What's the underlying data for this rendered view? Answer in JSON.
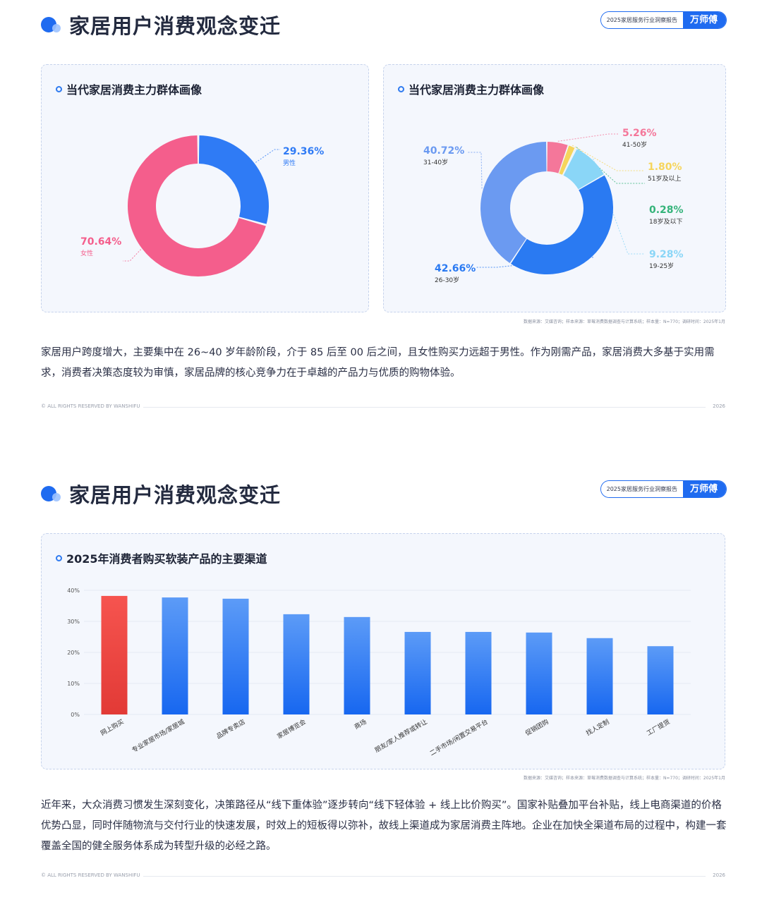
{
  "page1": {
    "header": {
      "title": "家居用户消费观念变迁"
    },
    "badge": {
      "text": "2025家居服务行业洞察报告",
      "brand": "万师傅"
    },
    "card_left": {
      "title": "当代家居消费主力群体画像"
    },
    "card_right": {
      "title": "当代家居消费主力群体画像"
    },
    "source": "数据来源：艾媒咨询；样本来源：草莓消费数据调查与计算系统；样本量：N=770；调研时间：2025年1月",
    "paragraph": "家居用户跨度增大，主要集中在 26~40 岁年龄阶段，介于 85 后至 00 后之间，且女性购买力远超于男性。作为刚需产品，家居消费大多基于实用需求，消费者决策态度较为审慎，家居品牌的核心竞争力在于卓越的产品力与优质的购物体验。",
    "footer": {
      "left": "© ALL RIGHTS RESERVED BY WANSHIFU",
      "right": "2026"
    }
  },
  "page2": {
    "header": {
      "title": "家居用户消费观念变迁"
    },
    "badge": {
      "text": "2025家居服务行业洞察报告",
      "brand": "万师傅"
    },
    "card": {
      "title": "2025年消费者购买软装产品的主要渠道"
    },
    "source": "数据来源：艾媒咨询；样本来源：草莓消费数据调查与计算系统；样本量：N=770；调研时间：2025年1月",
    "paragraph": "近年来，大众消费习惯发生深刻变化，决策路径从“线下重体验”逐步转向“线下轻体验 + 线上比价购买”。国家补贴叠加平台补贴，线上电商渠道的价格优势凸显，同时伴随物流与交付行业的快速发展，时效上的短板得以弥补，故线上渠道成为家居消费主阵地。企业在加快全渠道布局的过程中，构建一套覆盖全国的健全服务体系成为转型升级的必经之路。",
    "footer": {
      "left": "© ALL RIGHTS RESERVED BY WANSHIFU",
      "right": "2026"
    }
  },
  "chart_data": [
    {
      "type": "pie",
      "title": "当代家居消费主力群体画像",
      "donut": true,
      "slices": [
        {
          "label": "男性",
          "value": 29.36,
          "pct_text": "29.36%",
          "color": "#2f7bf5"
        },
        {
          "label": "女性",
          "value": 70.64,
          "pct_text": "70.64%",
          "color": "#f45e8c"
        }
      ]
    },
    {
      "type": "pie",
      "title": "当代家居消费主力群体画像",
      "donut": true,
      "slices": [
        {
          "label": "41-50岁",
          "value": 5.26,
          "pct_text": "5.26%",
          "color": "#f4779a"
        },
        {
          "label": "51岁及以上",
          "value": 1.8,
          "pct_text": "1.80%",
          "color": "#f6d55c"
        },
        {
          "label": "18岁及以下",
          "value": 0.28,
          "pct_text": "0.28%",
          "color": "#34b37a"
        },
        {
          "label": "19-25岁",
          "value": 9.28,
          "pct_text": "9.28%",
          "color": "#8ad6f7"
        },
        {
          "label": "26-30岁",
          "value": 42.66,
          "pct_text": "42.66%",
          "color": "#2a7af2"
        },
        {
          "label": "31-40岁",
          "value": 40.72,
          "pct_text": "40.72%",
          "color": "#6b9af1"
        }
      ]
    },
    {
      "type": "bar",
      "title": "2025年消费者购买软装产品的主要渠道",
      "categories": [
        "网上购买",
        "专业家居市场/家居城",
        "品牌专卖店",
        "家居博览会",
        "商场",
        "朋友/家人推荐或转让",
        "二手市场/闲置交易平台",
        "促销团购",
        "找人定制",
        "工厂提货"
      ],
      "values": [
        38.2,
        37.7,
        37.3,
        32.3,
        31.4,
        26.6,
        26.6,
        26.4,
        24.6,
        22.0
      ],
      "highlight_index": 0,
      "ylim": [
        0,
        40
      ],
      "yticks": [
        "0%",
        "10%",
        "20%",
        "30%",
        "40%"
      ],
      "grid": true
    }
  ]
}
